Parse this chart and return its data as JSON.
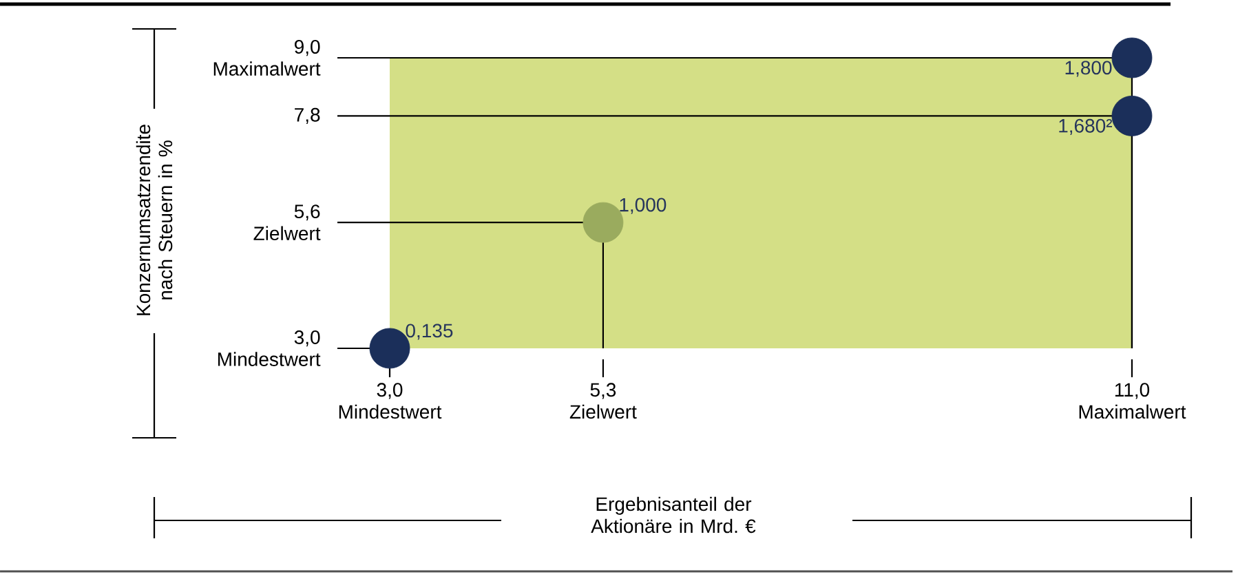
{
  "chart_data": {
    "type": "scatter",
    "xlabel": "Ergebnisanteil der Aktionäre in Mrd. €",
    "ylabel": "Konzernumsatzrendite nach Steuern in %",
    "x": [
      3,
      5.3,
      11,
      11
    ],
    "values": [
      3,
      5.6,
      9,
      7.8
    ],
    "colors": [
      "#1b2f5a",
      "#9aab5e",
      "#1b2f5a",
      "#1b2f5a"
    ],
    "marker": "circle",
    "xlim": [
      3,
      11
    ],
    "ylim": [
      3,
      9
    ],
    "xticks": [
      {
        "value": 3,
        "label": "3,0 Mindestwert"
      },
      {
        "value": 5.3,
        "label": "5,3 Zielwert"
      },
      {
        "value": 11,
        "label": "11,0 Maximalwert"
      }
    ],
    "yticks": [
      {
        "value": 3,
        "label": "3,0 Mindestwert"
      },
      {
        "value": 5.6,
        "label": "5,6 Zielwert"
      },
      {
        "value": 7.8,
        "label": "7,8"
      },
      {
        "value": 9,
        "label": "9,0 Maximalwert"
      }
    ],
    "bands": [
      {
        "axis": "x",
        "from": 3,
        "to": 11,
        "color": "#d4df86"
      }
    ],
    "annotations": [
      {
        "text": "0,135",
        "x": 3,
        "y": 3
      },
      {
        "text": "1,000",
        "x": 5.3,
        "y": 5.6
      },
      {
        "text": "1,800",
        "x": 11,
        "y": 9
      },
      {
        "text": "1,680²",
        "x": 11,
        "y": 7.8
      }
    ]
  }
}
